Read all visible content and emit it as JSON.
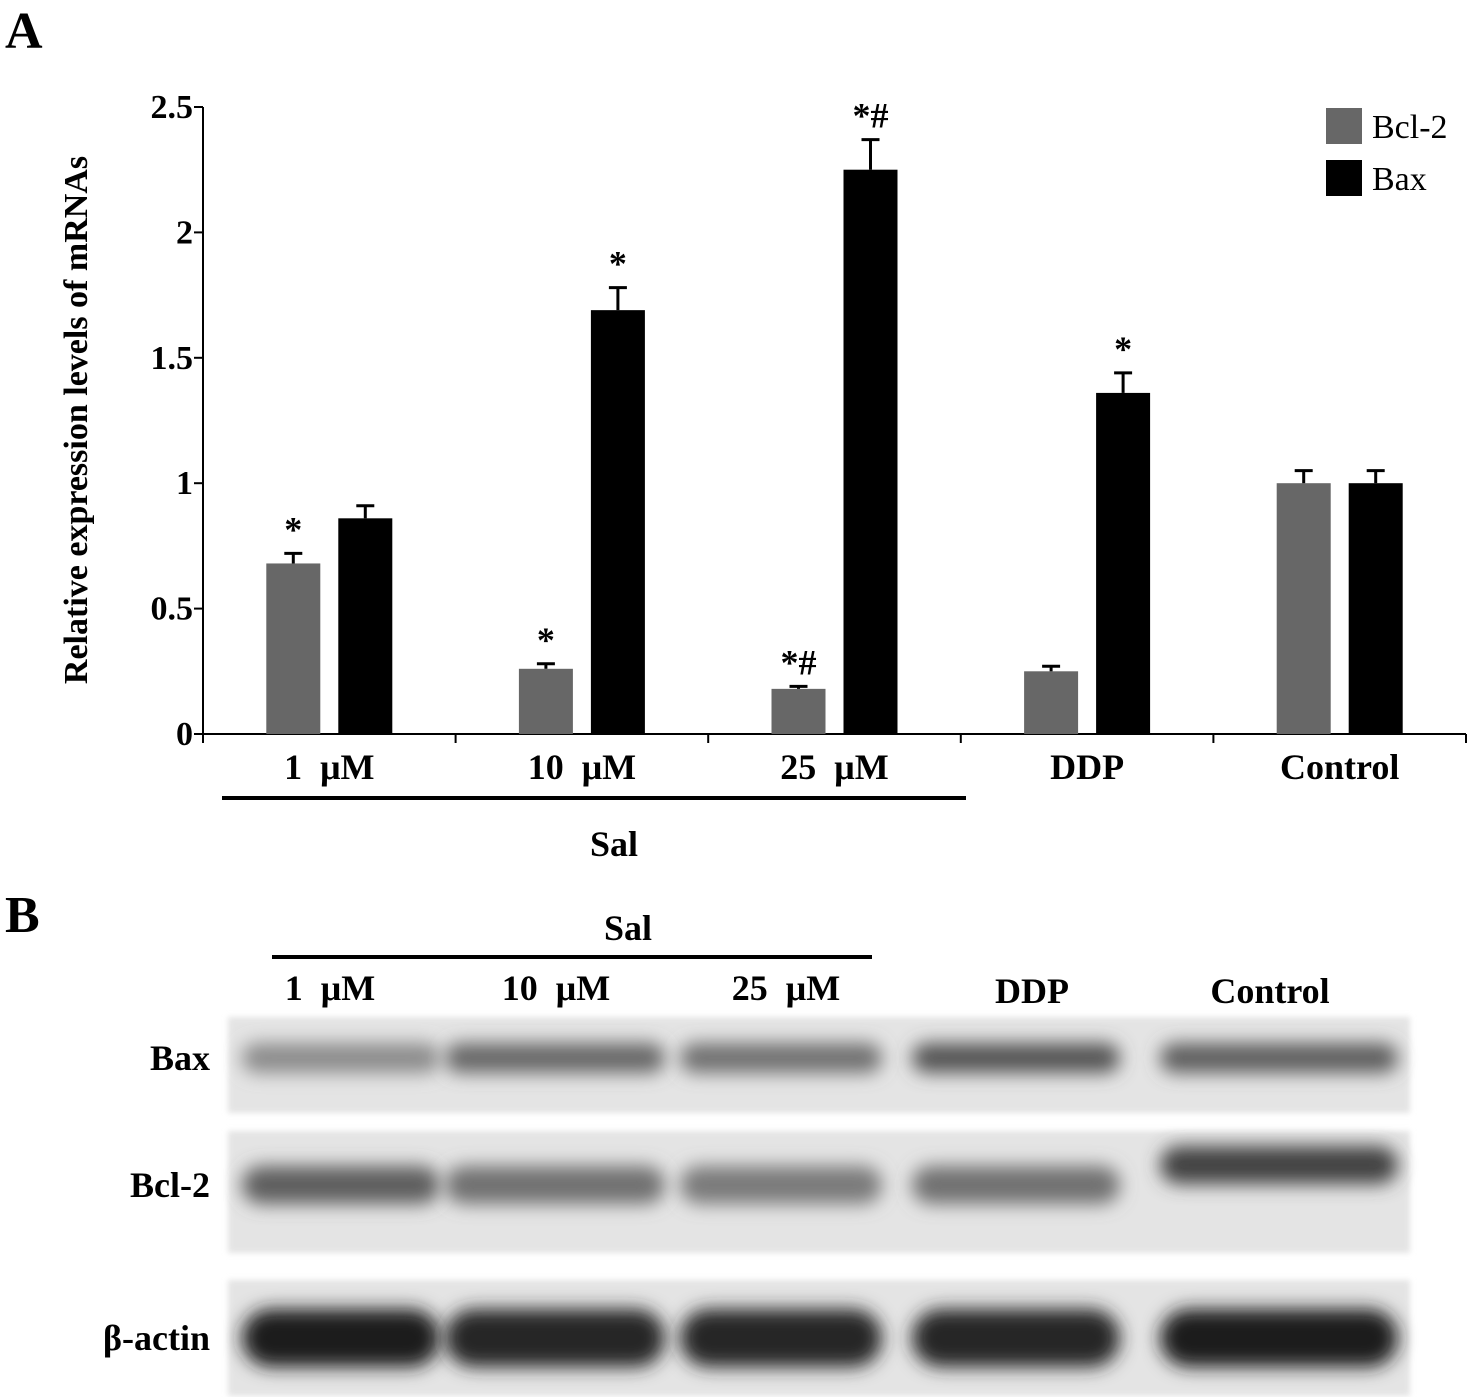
{
  "panel_a": {
    "letter": "A"
  },
  "panel_b": {
    "letter": "B"
  },
  "chart_data": {
    "type": "bar",
    "title": "",
    "xlabel": "",
    "ylabel": "Relative expression levels of mRNAs",
    "categories": [
      "1  μM",
      "10  μM",
      "25  μM",
      "DDP",
      "Control"
    ],
    "group_label": "Sal",
    "group_span": [
      0,
      2
    ],
    "series": [
      {
        "name": "Bcl-2",
        "values": [
          0.68,
          0.26,
          0.18,
          0.25,
          1.0
        ],
        "errors": [
          0.04,
          0.02,
          0.01,
          0.02,
          0.05
        ],
        "color": "#676767"
      },
      {
        "name": "Bax",
        "values": [
          0.86,
          1.69,
          2.25,
          1.36,
          1.0
        ],
        "errors": [
          0.05,
          0.09,
          0.12,
          0.08,
          0.05
        ],
        "color": "#000000"
      }
    ],
    "significance": [
      {
        "category": 0,
        "series": 0,
        "label": "*"
      },
      {
        "category": 1,
        "series": 0,
        "label": "*"
      },
      {
        "category": 1,
        "series": 1,
        "label": "*"
      },
      {
        "category": 2,
        "series": 0,
        "label": "*#"
      },
      {
        "category": 2,
        "series": 1,
        "label": "*#"
      },
      {
        "category": 3,
        "series": 1,
        "label": "*"
      }
    ],
    "ylim": [
      0,
      2.5
    ],
    "yticks": [
      0,
      0.5,
      1,
      1.5,
      2,
      2.5
    ],
    "ytick_labels": [
      "0",
      "0.5",
      "1",
      "1.5",
      "2",
      "2.5"
    ],
    "grid": false,
    "legend_position": "top-right"
  },
  "blot": {
    "group_label": "Sal",
    "lanes": [
      "1  μM",
      "10  μM",
      "25  μM",
      "DDP",
      "Control"
    ],
    "rows": [
      {
        "label": "Bax",
        "intensity": [
          0.35,
          0.55,
          0.5,
          0.65,
          0.6
        ]
      },
      {
        "label": "Bcl-2",
        "intensity": [
          0.6,
          0.5,
          0.45,
          0.5,
          0.75
        ]
      },
      {
        "label": "β-actin",
        "intensity": [
          0.95,
          0.9,
          0.9,
          0.9,
          0.95
        ]
      }
    ]
  }
}
